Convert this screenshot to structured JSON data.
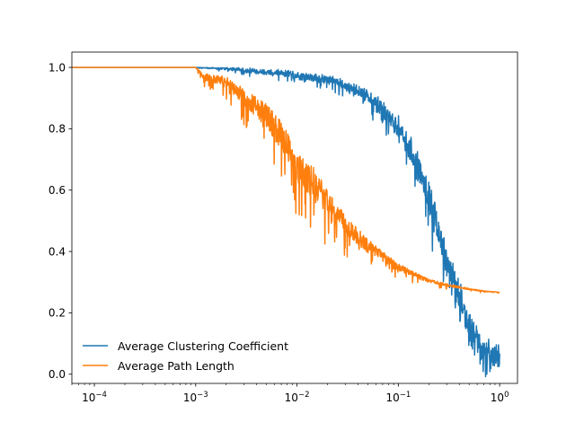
{
  "chart_data": {
    "type": "line",
    "title": "",
    "xlabel": "",
    "ylabel": "",
    "xscale": "log",
    "xlim": [
      6e-05,
      1.5
    ],
    "ylim": [
      -0.03,
      1.05
    ],
    "grid": false,
    "legend_position": "lower-left",
    "xticks": [
      {
        "value": 0.0001,
        "base": "10",
        "exp": "−4"
      },
      {
        "value": 0.001,
        "base": "10",
        "exp": "−3"
      },
      {
        "value": 0.01,
        "base": "10",
        "exp": "−2"
      },
      {
        "value": 0.1,
        "base": "10",
        "exp": "−1"
      },
      {
        "value": 1,
        "base": "10",
        "exp": "0"
      }
    ],
    "yticks": [
      {
        "value": 0.0,
        "label": "0.0"
      },
      {
        "value": 0.2,
        "label": "0.2"
      },
      {
        "value": 0.4,
        "label": "0.4"
      },
      {
        "value": 0.6,
        "label": "0.6"
      },
      {
        "value": 0.8,
        "label": "0.8"
      },
      {
        "value": 1.0,
        "label": "1.0"
      }
    ],
    "series": [
      {
        "name": "Average Clustering Coefficient",
        "color": "#1f77b4",
        "x": [
          6e-05,
          0.0001,
          0.001,
          0.002,
          0.003,
          0.005,
          0.008,
          0.01,
          0.015,
          0.02,
          0.03,
          0.05,
          0.07,
          0.1,
          0.15,
          0.2,
          0.3,
          0.4,
          0.5,
          0.7,
          1.0
        ],
        "y": [
          1.0,
          1.0,
          1.0,
          1.0,
          0.995,
          0.99,
          0.985,
          0.98,
          0.975,
          0.97,
          0.95,
          0.92,
          0.88,
          0.82,
          0.72,
          0.6,
          0.4,
          0.27,
          0.18,
          0.1,
          0.07
        ],
        "band": [
          0,
          0,
          0,
          0.008,
          0.01,
          0.012,
          0.014,
          0.016,
          0.02,
          0.02,
          0.025,
          0.03,
          0.04,
          0.05,
          0.06,
          0.07,
          0.08,
          0.08,
          0.07,
          0.06,
          0.05
        ]
      },
      {
        "name": "Average Path Length",
        "color": "#ff7f0e",
        "x": [
          6e-05,
          0.0001,
          0.001,
          0.0012,
          0.002,
          0.003,
          0.005,
          0.008,
          0.01,
          0.015,
          0.02,
          0.03,
          0.05,
          0.07,
          0.1,
          0.15,
          0.2,
          0.3,
          0.5,
          0.7,
          1.0
        ],
        "y": [
          1.0,
          1.0,
          1.0,
          0.98,
          0.97,
          0.93,
          0.88,
          0.8,
          0.72,
          0.67,
          0.6,
          0.52,
          0.44,
          0.4,
          0.36,
          0.33,
          0.31,
          0.295,
          0.28,
          0.272,
          0.268
        ],
        "band": [
          0,
          0,
          0,
          0.02,
          0.03,
          0.05,
          0.07,
          0.09,
          0.1,
          0.09,
          0.08,
          0.06,
          0.04,
          0.03,
          0.02,
          0.015,
          0.01,
          0.008,
          0.005,
          0.003,
          0.002
        ]
      }
    ]
  }
}
